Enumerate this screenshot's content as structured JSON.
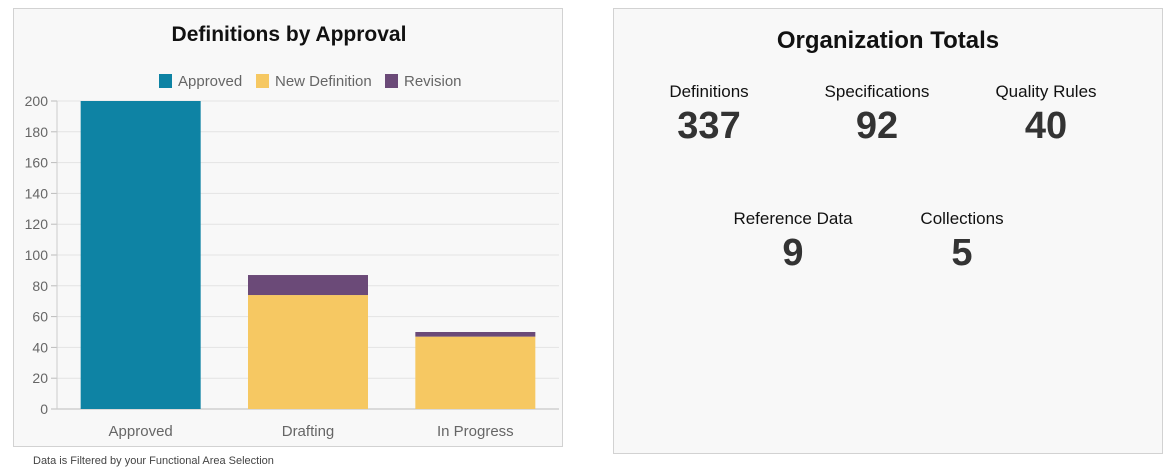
{
  "chart_data": {
    "type": "bar",
    "stacked": true,
    "title": "Definitions by Approval",
    "categories": [
      "Approved",
      "Drafting",
      "In Progress"
    ],
    "series": [
      {
        "name": "Approved",
        "color": "#0e83a4",
        "values": [
          200,
          0,
          0
        ]
      },
      {
        "name": "New Definition",
        "color": "#f6c862",
        "values": [
          0,
          74,
          47
        ]
      },
      {
        "name": "Revision",
        "color": "#6b4a78",
        "values": [
          0,
          13,
          3
        ]
      }
    ],
    "ylim": [
      0,
      200
    ],
    "yticks": [
      0,
      20,
      40,
      60,
      80,
      100,
      120,
      140,
      160,
      180,
      200
    ],
    "grid": true,
    "legend_position": "top"
  },
  "footnote": "Data is Filtered by your Functional Area Selection",
  "totals": {
    "title": "Organization Totals",
    "items": [
      {
        "label": "Definitions",
        "value": "337"
      },
      {
        "label": "Specifications",
        "value": "92"
      },
      {
        "label": "Quality Rules",
        "value": "40"
      },
      {
        "label": "Reference Data",
        "value": "9"
      },
      {
        "label": "Collections",
        "value": "5"
      }
    ]
  }
}
